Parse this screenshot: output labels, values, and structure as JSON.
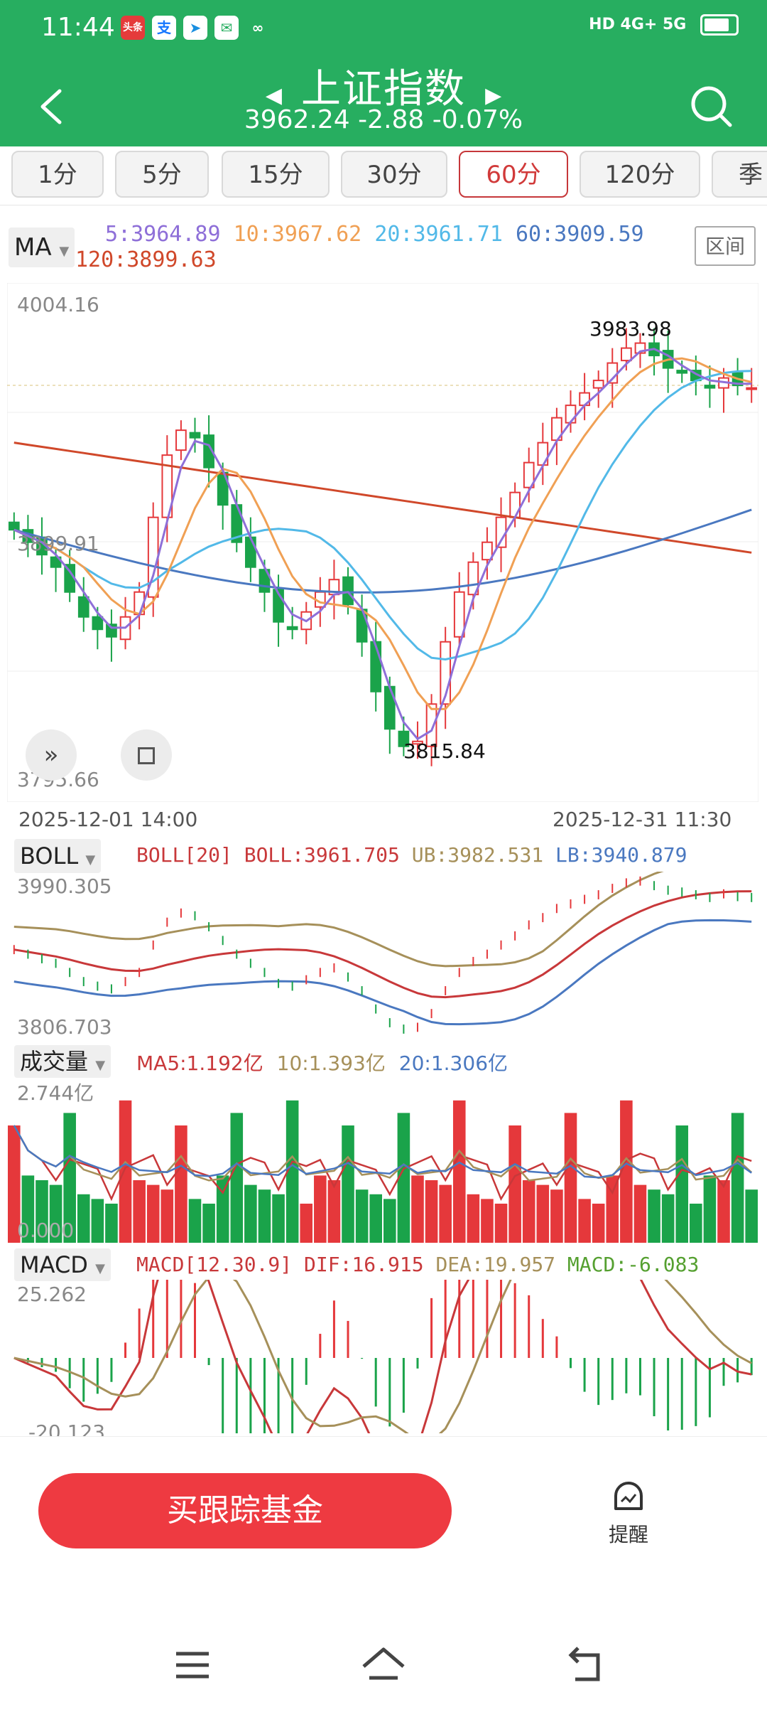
{
  "status_bar": {
    "time": "11:44",
    "icons": [
      "头条",
      "支"
    ],
    "network": "HD 4G+ 5G"
  },
  "header": {
    "title": "上证指数",
    "price": "3962.24",
    "change": "-2.88",
    "pct": "-0.07%"
  },
  "tabs": [
    "1分",
    "5分",
    "15分",
    "30分",
    "60分",
    "120分",
    "季"
  ],
  "active_tab": "60分",
  "ma": {
    "selector": "MA",
    "range_button": "区间",
    "ma5": "5:3964.89",
    "ma10": "10:3967.62",
    "ma20": "20:3961.71",
    "ma60": "60:3909.59",
    "ma120": "120:3899.63",
    "colors": {
      "ma5": "#8e6fd8",
      "ma10": "#f0a054",
      "ma20": "#52b9e8",
      "ma60": "#4a78c0",
      "ma120": "#d0482a"
    }
  },
  "main_chart": {
    "y_top": "4004.16",
    "y_mid": "3899.91",
    "y_bottom": "3795.66",
    "high_label": "3983.98",
    "low_label": "3815.84",
    "date_start": "2025-12-01  14:00",
    "date_end": "2025-12-31  11:30"
  },
  "boll": {
    "selector": "BOLL",
    "boll": "BOLL[20] BOLL:3961.705",
    "ub": "UB:3982.531",
    "lb": "LB:3940.879",
    "y_top": "3990.305",
    "y_bottom": "3806.703"
  },
  "volume": {
    "selector": "成交量",
    "ma5": "MA5:1.192亿",
    "ma10": "10:1.393亿",
    "ma20": "20:1.306亿",
    "y_top": "2.744亿",
    "y_bottom": "0.000"
  },
  "macd": {
    "selector": "MACD",
    "macd_params": "MACD[12.30.9]",
    "dif": "DIF:16.915",
    "dea": "DEA:19.957",
    "macd_val": "MACD:-6.083",
    "y_top": "25.262",
    "y_bottom": "-20.123"
  },
  "bottom": {
    "buy_button": "买跟踪基金",
    "remind": "提醒"
  },
  "chart_data": {
    "type": "candlestick",
    "y_range": [
      3795.66,
      4004.16
    ],
    "high": 3983.98,
    "low": 3815.84,
    "close_series": [
      3905,
      3900,
      3895,
      3890,
      3880,
      3870,
      3865,
      3862,
      3870,
      3880,
      3910,
      3935,
      3945,
      3942,
      3930,
      3915,
      3900,
      3890,
      3880,
      3868,
      3865,
      3872,
      3880,
      3885,
      3875,
      3860,
      3840,
      3825,
      3818,
      3820,
      3835,
      3860,
      3880,
      3892,
      3900,
      3910,
      3920,
      3932,
      3940,
      3950,
      3955,
      3960,
      3965,
      3972,
      3978,
      3980,
      3975,
      3970,
      3968,
      3965,
      3962,
      3966,
      3963,
      3962
    ]
  }
}
